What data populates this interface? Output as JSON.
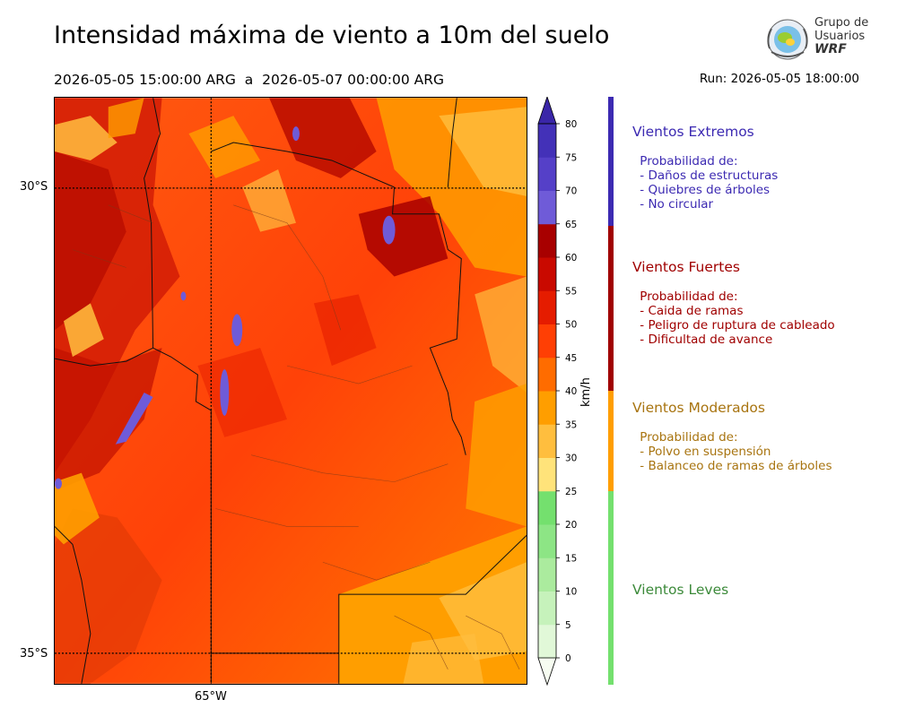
{
  "header": {
    "title": "Intensidad máxima de viento a 10m del suelo",
    "period": "2026-05-05 15:00:00 ARG  a  2026-05-07 00:00:00 ARG",
    "run": "Run: 2026-05-05 18:00:00"
  },
  "logo": {
    "line1": "Grupo de",
    "line2": "Usuarios",
    "line3": "WRF",
    "icon": "globe-laurel-icon"
  },
  "map": {
    "lat_labels": [
      "30°S",
      "35°S"
    ],
    "lon_labels": [
      "65°W"
    ]
  },
  "colorbar": {
    "unit": "km/h",
    "levels": [
      "0",
      "5",
      "10",
      "15",
      "20",
      "25",
      "30",
      "35",
      "40",
      "45",
      "50",
      "55",
      "60",
      "65",
      "70",
      "75",
      "80"
    ],
    "colors": [
      "#f7fdf1",
      "#e1f8d8",
      "#c6f2bb",
      "#abeb9e",
      "#8de585",
      "#74e06e",
      "#ffe37a",
      "#ffbe3e",
      "#ff9e00",
      "#ff6c00",
      "#ff3f04",
      "#e51c00",
      "#c90900",
      "#a80000",
      "#6f5bd8",
      "#5540c8",
      "#4331b8",
      "#3a26a8"
    ]
  },
  "categories": [
    {
      "title": "Vientos Extremos",
      "color": "#3c2ab2",
      "desc": " Probabilidad de:\n - Daños de estructuras\n - Quiebres de árboles\n - No circular"
    },
    {
      "title": "Vientos Fuertes",
      "color": "#a00000",
      "desc": " Probabilidad de:\n - Caida de ramas\n - Peligro de ruptura de cableado\n - Dificultad de avance"
    },
    {
      "title": "Vientos Moderados",
      "color": "#a87410",
      "desc": " Probabilidad de:\n - Polvo en suspensión\n - Balanceo de ramas de árboles"
    },
    {
      "title": "Vientos Leves",
      "color": "#3c8a3a",
      "desc": ""
    }
  ],
  "category_bar_colors": [
    "#3c2ab2",
    "#a00000",
    "#ff9e00",
    "#74e06e"
  ]
}
